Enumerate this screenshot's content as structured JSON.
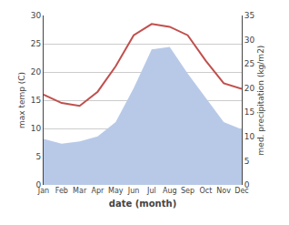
{
  "chart_data": {
    "type": "line",
    "xlabel": "date (month)",
    "ylabel": "max temp (C)",
    "y2label": "med. precipitation (kg/m2)",
    "categories": [
      "Jan",
      "Feb",
      "Mar",
      "Apr",
      "May",
      "Jun",
      "Jul",
      "Aug",
      "Sep",
      "Oct",
      "Nov",
      "Dec"
    ],
    "series": [
      {
        "type": "area",
        "axis": "y2",
        "color": "#b8c9e8",
        "values": [
          9.5,
          8.5,
          9.0,
          10.0,
          13.0,
          20.0,
          28.0,
          28.5,
          23.0,
          18.0,
          13.0,
          11.5
        ]
      },
      {
        "type": "line",
        "color": "#c0504d",
        "values": [
          16.0,
          14.5,
          14.0,
          16.5,
          21.0,
          26.5,
          28.5,
          28.0,
          26.5,
          22.0,
          18.0,
          17.0
        ]
      }
    ],
    "ylim": [
      0,
      30
    ],
    "yticks": [
      0,
      5,
      10,
      15,
      20,
      25,
      30
    ],
    "y2lim": [
      0,
      35
    ],
    "y2ticks": [
      0,
      5,
      10,
      15,
      20,
      25,
      30,
      35
    ],
    "grid": true
  }
}
